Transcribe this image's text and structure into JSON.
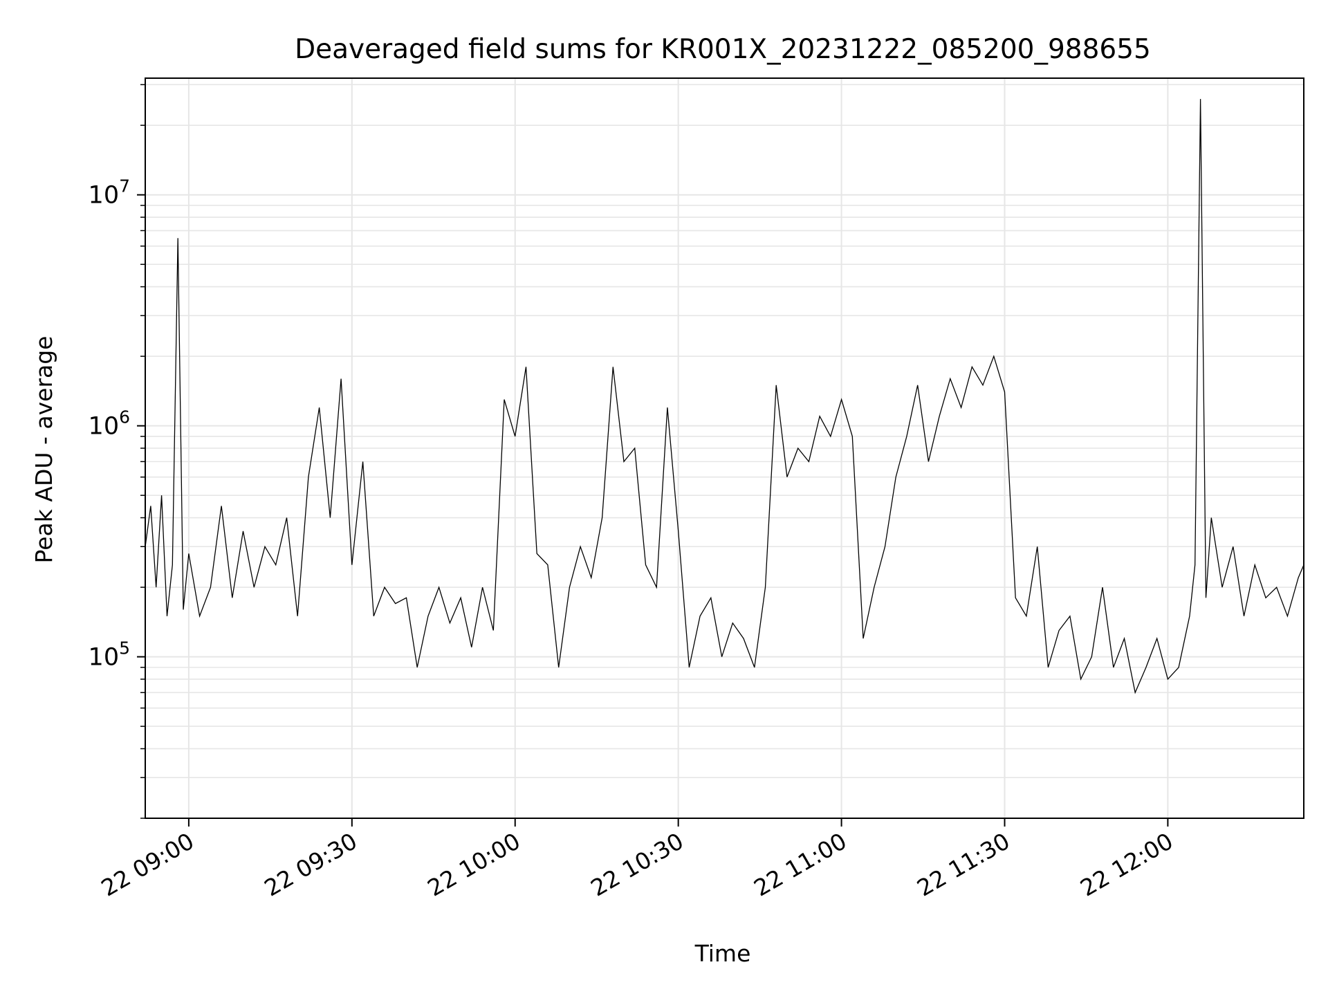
{
  "chart_data": {
    "type": "line",
    "title": "Deaveraged field sums for KR001X_20231222_085200_988655",
    "xlabel": "Time",
    "ylabel": "Peak ADU - average",
    "yscale": "log",
    "grid": true,
    "legend": "none",
    "line_color": "#000000",
    "grid_color": "#e6e6e6",
    "xlim": [
      "2023-12-22 08:52",
      "2023-12-22 12:25"
    ],
    "ylim": [
      20000,
      32000000
    ],
    "x_ticks": [
      {
        "time": "2023-12-22 09:00",
        "label": "22 09:00"
      },
      {
        "time": "2023-12-22 09:30",
        "label": "22 09:30"
      },
      {
        "time": "2023-12-22 10:00",
        "label": "22 10:00"
      },
      {
        "time": "2023-12-22 10:30",
        "label": "22 10:30"
      },
      {
        "time": "2023-12-22 11:00",
        "label": "22 11:00"
      },
      {
        "time": "2023-12-22 11:30",
        "label": "22 11:30"
      },
      {
        "time": "2023-12-22 12:00",
        "label": "22 12:00"
      }
    ],
    "y_ticks": [
      {
        "value": 100000,
        "base": "10",
        "exp": "5"
      },
      {
        "value": 1000000,
        "base": "10",
        "exp": "6"
      },
      {
        "value": 10000000,
        "base": "10",
        "exp": "7"
      }
    ],
    "series": [
      {
        "x": [
          "2023-12-22 08:52",
          "2023-12-22 08:53",
          "2023-12-22 08:54",
          "2023-12-22 08:55",
          "2023-12-22 08:56",
          "2023-12-22 08:57",
          "2023-12-22 08:58",
          "2023-12-22 08:59",
          "2023-12-22 09:00",
          "2023-12-22 09:02",
          "2023-12-22 09:04",
          "2023-12-22 09:06",
          "2023-12-22 09:08",
          "2023-12-22 09:10",
          "2023-12-22 09:12",
          "2023-12-22 09:14",
          "2023-12-22 09:16",
          "2023-12-22 09:18",
          "2023-12-22 09:20",
          "2023-12-22 09:22",
          "2023-12-22 09:24",
          "2023-12-22 09:26",
          "2023-12-22 09:28",
          "2023-12-22 09:30",
          "2023-12-22 09:32",
          "2023-12-22 09:34",
          "2023-12-22 09:36",
          "2023-12-22 09:38",
          "2023-12-22 09:40",
          "2023-12-22 09:42",
          "2023-12-22 09:44",
          "2023-12-22 09:46",
          "2023-12-22 09:48",
          "2023-12-22 09:50",
          "2023-12-22 09:52",
          "2023-12-22 09:54",
          "2023-12-22 09:56",
          "2023-12-22 09:58",
          "2023-12-22 10:00",
          "2023-12-22 10:02",
          "2023-12-22 10:04",
          "2023-12-22 10:06",
          "2023-12-22 10:08",
          "2023-12-22 10:10",
          "2023-12-22 10:12",
          "2023-12-22 10:14",
          "2023-12-22 10:16",
          "2023-12-22 10:18",
          "2023-12-22 10:20",
          "2023-12-22 10:22",
          "2023-12-22 10:24",
          "2023-12-22 10:26",
          "2023-12-22 10:28",
          "2023-12-22 10:30",
          "2023-12-22 10:32",
          "2023-12-22 10:34",
          "2023-12-22 10:36",
          "2023-12-22 10:38",
          "2023-12-22 10:40",
          "2023-12-22 10:42",
          "2023-12-22 10:44",
          "2023-12-22 10:46",
          "2023-12-22 10:48",
          "2023-12-22 10:50",
          "2023-12-22 10:52",
          "2023-12-22 10:54",
          "2023-12-22 10:56",
          "2023-12-22 10:58",
          "2023-12-22 11:00",
          "2023-12-22 11:02",
          "2023-12-22 11:04",
          "2023-12-22 11:06",
          "2023-12-22 11:08",
          "2023-12-22 11:10",
          "2023-12-22 11:12",
          "2023-12-22 11:14",
          "2023-12-22 11:16",
          "2023-12-22 11:18",
          "2023-12-22 11:20",
          "2023-12-22 11:22",
          "2023-12-22 11:24",
          "2023-12-22 11:26",
          "2023-12-22 11:28",
          "2023-12-22 11:30",
          "2023-12-22 11:32",
          "2023-12-22 11:34",
          "2023-12-22 11:36",
          "2023-12-22 11:38",
          "2023-12-22 11:40",
          "2023-12-22 11:42",
          "2023-12-22 11:44",
          "2023-12-22 11:46",
          "2023-12-22 11:48",
          "2023-12-22 11:50",
          "2023-12-22 11:52",
          "2023-12-22 11:54",
          "2023-12-22 11:56",
          "2023-12-22 11:58",
          "2023-12-22 12:00",
          "2023-12-22 12:02",
          "2023-12-22 12:04",
          "2023-12-22 12:05",
          "2023-12-22 12:06",
          "2023-12-22 12:07",
          "2023-12-22 12:08",
          "2023-12-22 12:10",
          "2023-12-22 12:12",
          "2023-12-22 12:14",
          "2023-12-22 12:16",
          "2023-12-22 12:18",
          "2023-12-22 12:20",
          "2023-12-22 12:22",
          "2023-12-22 12:24",
          "2023-12-22 12:25"
        ],
        "values": [
          300000,
          450000,
          200000,
          500000,
          150000,
          250000,
          6500000,
          160000,
          280000,
          150000,
          200000,
          450000,
          180000,
          350000,
          200000,
          300000,
          250000,
          400000,
          150000,
          600000,
          1200000,
          400000,
          1600000,
          250000,
          700000,
          150000,
          200000,
          170000,
          180000,
          90000,
          150000,
          200000,
          140000,
          180000,
          110000,
          200000,
          130000,
          1300000,
          900000,
          1800000,
          280000,
          250000,
          90000,
          200000,
          300000,
          220000,
          400000,
          1800000,
          700000,
          800000,
          250000,
          200000,
          1200000,
          350000,
          90000,
          150000,
          180000,
          100000,
          140000,
          120000,
          90000,
          200000,
          1500000,
          600000,
          800000,
          700000,
          1100000,
          900000,
          1300000,
          900000,
          120000,
          200000,
          300000,
          600000,
          900000,
          1500000,
          700000,
          1100000,
          1600000,
          1200000,
          1800000,
          1500000,
          2000000,
          1400000,
          180000,
          150000,
          300000,
          90000,
          130000,
          150000,
          80000,
          100000,
          200000,
          90000,
          120000,
          70000,
          90000,
          120000,
          80000,
          90000,
          150000,
          250000,
          26000000,
          180000,
          400000,
          200000,
          300000,
          150000,
          250000,
          180000,
          200000,
          150000,
          220000,
          250000
        ]
      }
    ]
  }
}
